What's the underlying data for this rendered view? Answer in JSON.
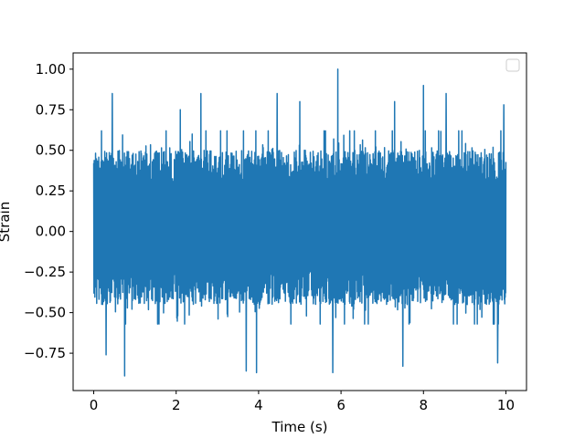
{
  "chart_data": {
    "type": "line",
    "title": "",
    "xlabel": "Time (s)",
    "ylabel": "Strain",
    "xlim": [
      -0.5,
      10.5
    ],
    "ylim": [
      -0.98,
      1.1
    ],
    "x_ticks": [
      0,
      2,
      4,
      6,
      8,
      10
    ],
    "x_tick_labels": [
      "0",
      "2",
      "4",
      "6",
      "8",
      "10"
    ],
    "y_ticks": [
      -0.75,
      -0.5,
      -0.25,
      0.0,
      0.25,
      0.5,
      0.75,
      1.0
    ],
    "y_tick_labels": [
      "−0.75",
      "−0.50",
      "−0.25",
      "0.00",
      "0.25",
      "0.50",
      "0.75",
      "1.00"
    ],
    "grid": false,
    "legend": {
      "placement": "top-right",
      "entries": []
    },
    "series": [
      {
        "color": "#1f77b4",
        "t_start": 0,
        "t_end": 10,
        "envelope": {
          "typical_min": -0.45,
          "typical_max": 0.5,
          "peak_max": {
            "t": 5.92,
            "value": 1.0
          },
          "peak_min": {
            "t": 0.75,
            "value": -0.89
          }
        },
        "upper_spikes": [
          {
            "t": 0.45,
            "value": 0.85
          },
          {
            "t": 2.1,
            "value": 0.75
          },
          {
            "t": 2.6,
            "value": 0.85
          },
          {
            "t": 4.45,
            "value": 0.85
          },
          {
            "t": 5.0,
            "value": 0.8
          },
          {
            "t": 5.92,
            "value": 1.0
          },
          {
            "t": 7.3,
            "value": 0.8
          },
          {
            "t": 8.0,
            "value": 0.9
          },
          {
            "t": 8.55,
            "value": 0.85
          },
          {
            "t": 9.95,
            "value": 0.78
          }
        ],
        "lower_spikes": [
          {
            "t": 0.3,
            "value": -0.76
          },
          {
            "t": 0.75,
            "value": -0.89
          },
          {
            "t": 3.7,
            "value": -0.86
          },
          {
            "t": 3.95,
            "value": -0.87
          },
          {
            "t": 5.8,
            "value": -0.87
          },
          {
            "t": 7.5,
            "value": -0.83
          },
          {
            "t": 9.8,
            "value": -0.81
          }
        ]
      }
    ]
  }
}
